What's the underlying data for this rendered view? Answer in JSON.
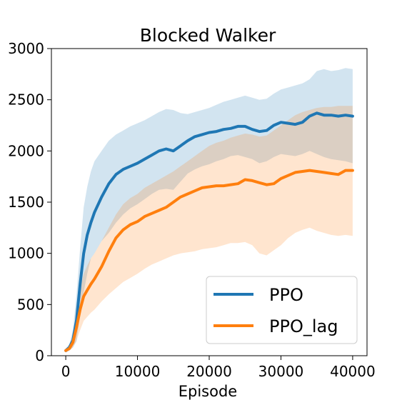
{
  "chart_data": {
    "type": "line",
    "title": "Blocked Walker",
    "xlabel": "Episode",
    "ylabel": "",
    "xlim": [
      -2000,
      42000
    ],
    "ylim": [
      0,
      3000
    ],
    "xticks": [
      0,
      10000,
      20000,
      30000,
      40000
    ],
    "xtick_labels": [
      "0",
      "10000",
      "20000",
      "30000",
      "40000"
    ],
    "yticks": [
      0,
      500,
      1000,
      1500,
      2000,
      2500,
      3000
    ],
    "ytick_labels": [
      "0",
      "500",
      "1000",
      "1500",
      "2000",
      "2500",
      "3000"
    ],
    "grid": false,
    "legend_position": "lower-right",
    "x": [
      0,
      500,
      1000,
      1500,
      2000,
      2500,
      3000,
      3500,
      4000,
      5000,
      6000,
      7000,
      8000,
      9000,
      10000,
      11000,
      12000,
      13000,
      14000,
      15000,
      16000,
      17000,
      18000,
      19000,
      20000,
      21000,
      22000,
      23000,
      24000,
      25000,
      26000,
      27000,
      28000,
      29000,
      30000,
      31000,
      32000,
      33000,
      34000,
      35000,
      36000,
      37000,
      38000,
      39000,
      40000
    ],
    "series": [
      {
        "name": "PPO",
        "color": "#1f77b4",
        "values": [
          50,
          80,
          150,
          350,
          700,
          1000,
          1180,
          1300,
          1400,
          1550,
          1680,
          1770,
          1820,
          1850,
          1880,
          1920,
          1960,
          2000,
          2020,
          2000,
          2050,
          2100,
          2140,
          2160,
          2180,
          2190,
          2210,
          2220,
          2240,
          2240,
          2210,
          2190,
          2200,
          2250,
          2280,
          2270,
          2260,
          2280,
          2340,
          2370,
          2350,
          2350,
          2340,
          2350,
          2340
        ],
        "upper": [
          70,
          110,
          250,
          600,
          1050,
          1450,
          1650,
          1800,
          1900,
          2000,
          2100,
          2160,
          2200,
          2240,
          2270,
          2300,
          2340,
          2380,
          2410,
          2400,
          2370,
          2360,
          2380,
          2400,
          2420,
          2450,
          2480,
          2500,
          2520,
          2540,
          2520,
          2500,
          2510,
          2560,
          2600,
          2620,
          2640,
          2660,
          2700,
          2780,
          2800,
          2780,
          2790,
          2810,
          2800
        ],
        "lower": [
          30,
          50,
          80,
          140,
          400,
          620,
          800,
          950,
          1000,
          1120,
          1200,
          1300,
          1380,
          1440,
          1480,
          1530,
          1580,
          1620,
          1630,
          1620,
          1700,
          1780,
          1820,
          1850,
          1870,
          1900,
          1920,
          1950,
          1960,
          1940,
          1920,
          1880,
          1900,
          1940,
          1970,
          1960,
          1950,
          1970,
          2000,
          1970,
          1940,
          1920,
          1910,
          1900,
          1880
        ]
      },
      {
        "name": "PPO_lag",
        "color": "#ff7f0e",
        "values": [
          50,
          70,
          130,
          280,
          450,
          580,
          640,
          700,
          750,
          870,
          1020,
          1150,
          1230,
          1280,
          1310,
          1360,
          1390,
          1420,
          1450,
          1500,
          1550,
          1580,
          1610,
          1640,
          1650,
          1660,
          1660,
          1670,
          1680,
          1720,
          1710,
          1690,
          1670,
          1680,
          1730,
          1760,
          1790,
          1800,
          1810,
          1800,
          1790,
          1780,
          1770,
          1810,
          1810
        ],
        "upper": [
          60,
          100,
          200,
          420,
          650,
          800,
          880,
          950,
          1000,
          1120,
          1250,
          1380,
          1480,
          1540,
          1580,
          1640,
          1680,
          1720,
          1760,
          1800,
          1850,
          1900,
          1950,
          2000,
          2050,
          2080,
          2100,
          2130,
          2150,
          2170,
          2160,
          2140,
          2150,
          2200,
          2250,
          2300,
          2350,
          2380,
          2400,
          2420,
          2430,
          2430,
          2440,
          2440,
          2440
        ],
        "lower": [
          40,
          50,
          80,
          150,
          250,
          340,
          380,
          420,
          450,
          530,
          600,
          660,
          720,
          760,
          800,
          850,
          890,
          920,
          950,
          980,
          1000,
          1010,
          1020,
          1040,
          1050,
          1060,
          1080,
          1100,
          1100,
          1110,
          1080,
          1000,
          980,
          1030,
          1080,
          1150,
          1200,
          1230,
          1250,
          1220,
          1200,
          1180,
          1170,
          1180,
          1170
        ]
      }
    ]
  }
}
